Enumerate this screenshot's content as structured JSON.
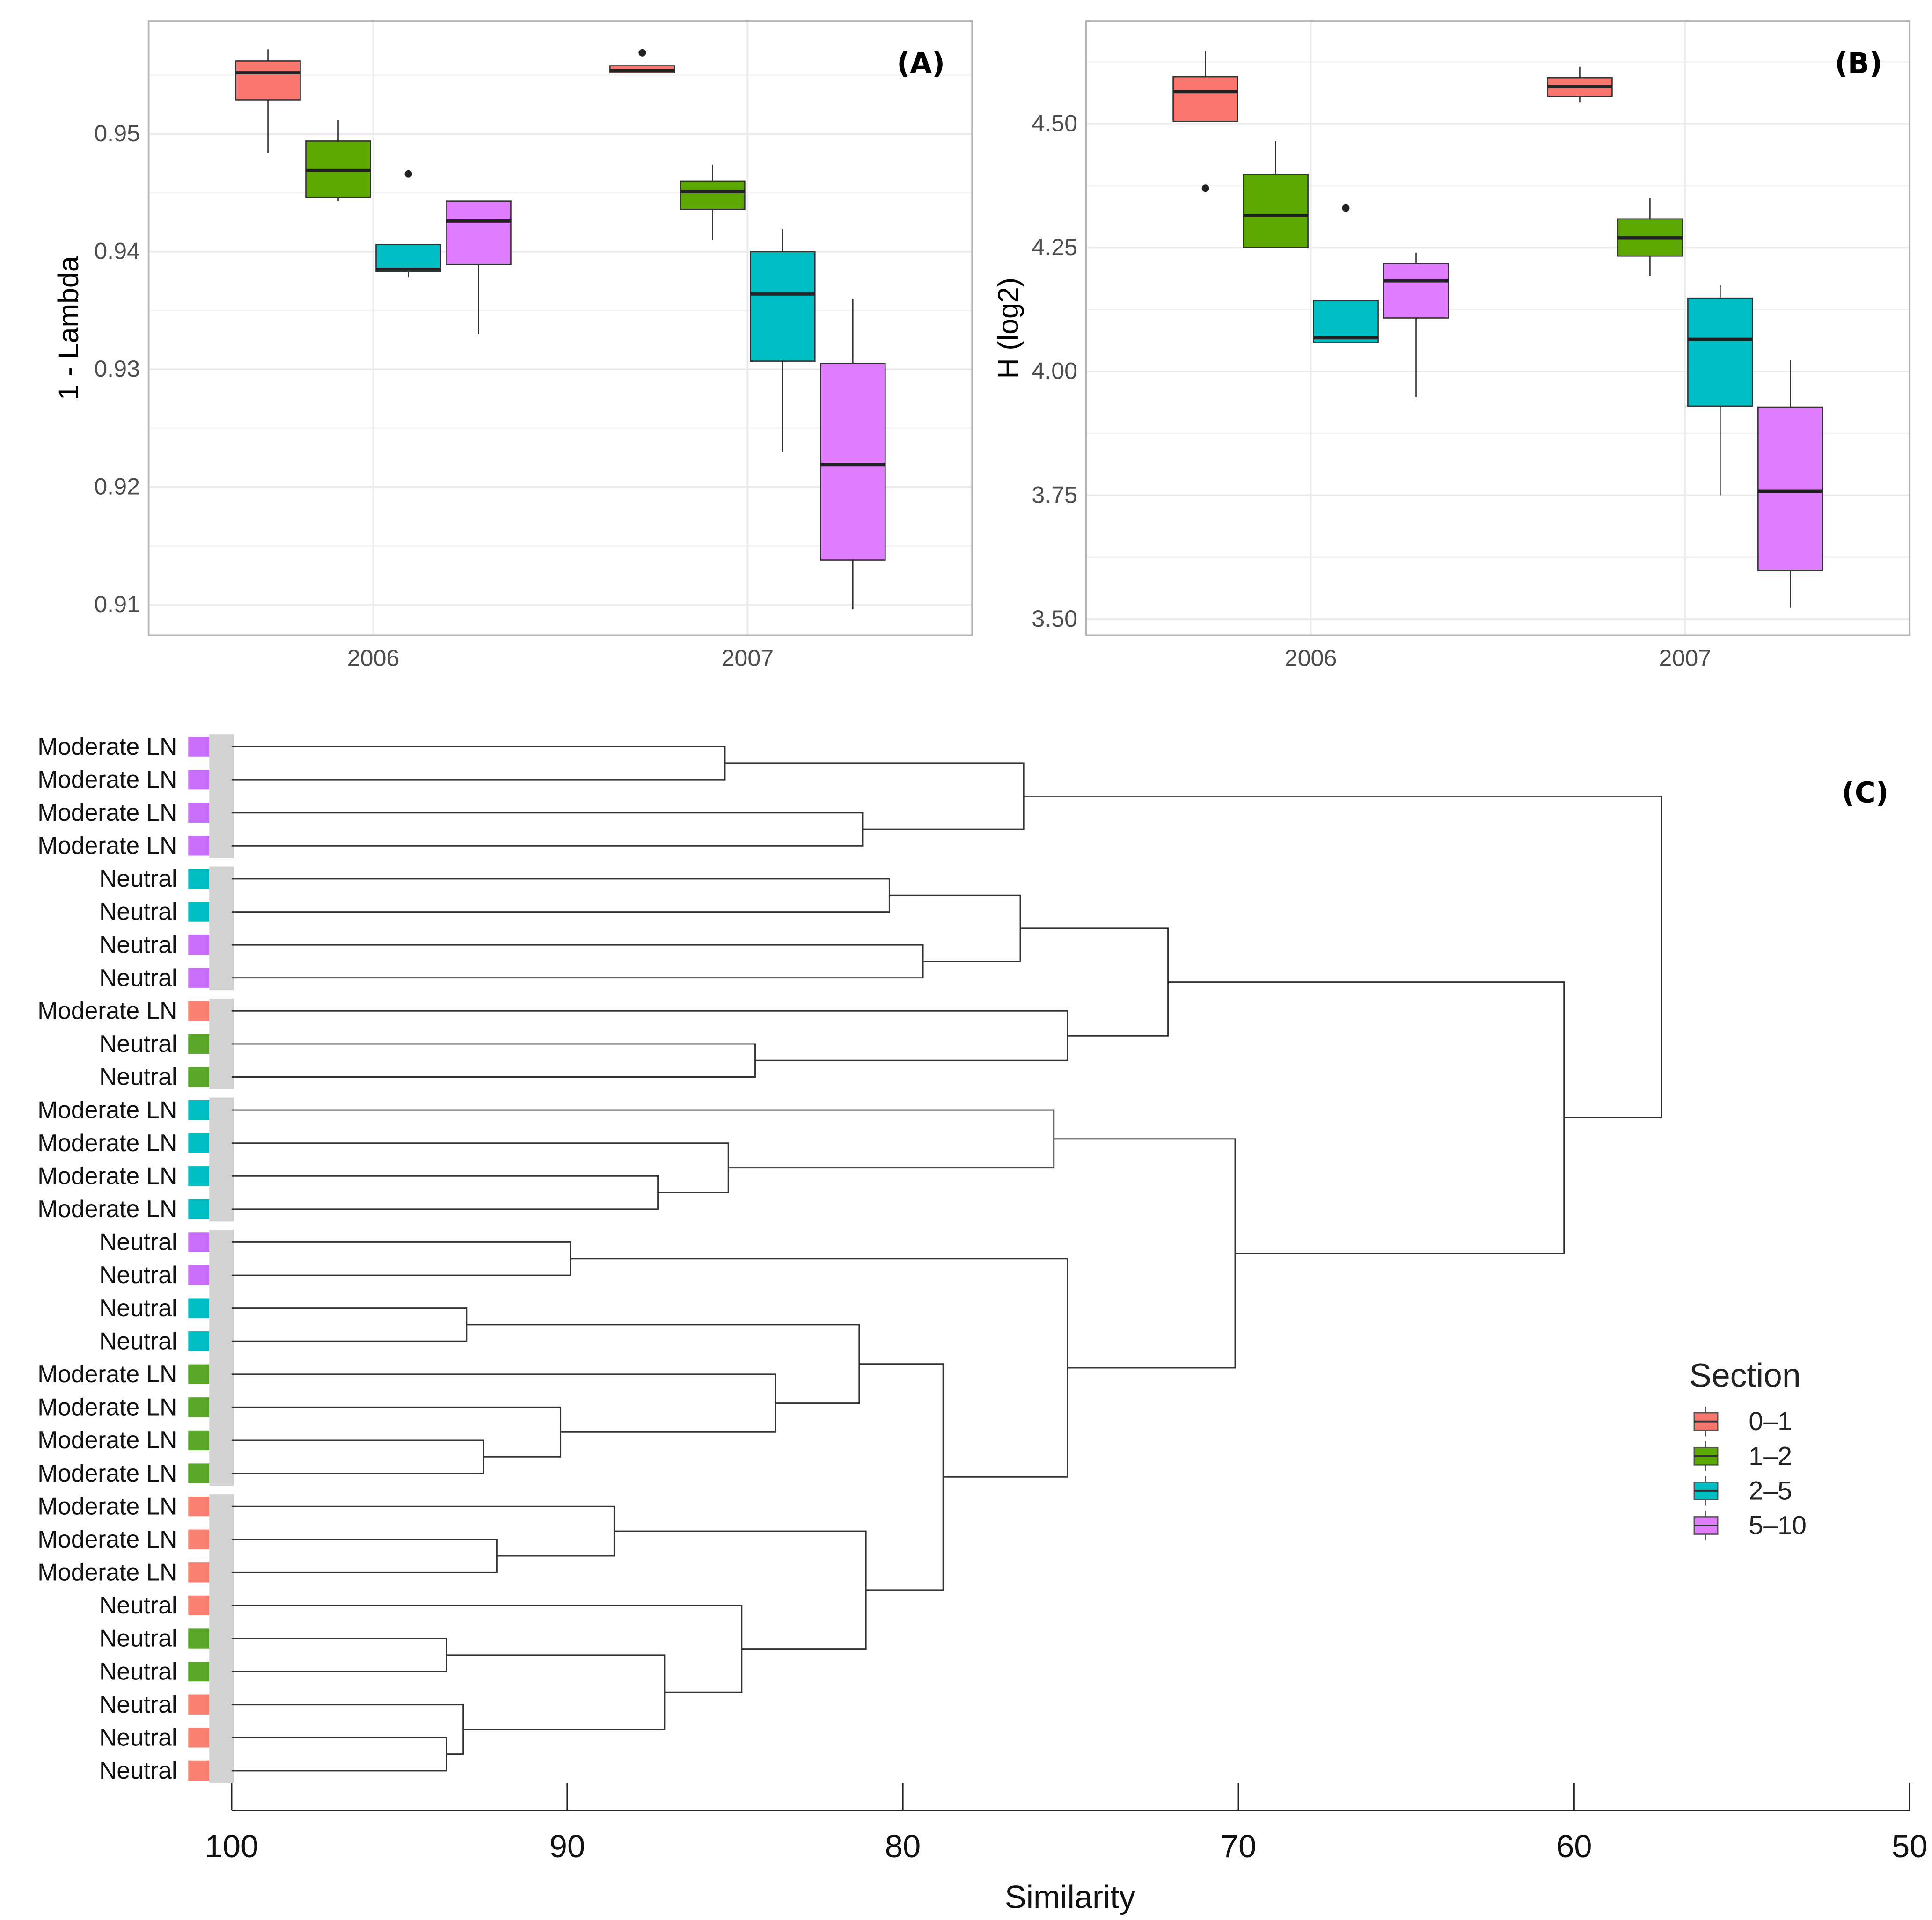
{
  "colors": {
    "0–1": "#F8766D",
    "1–2": "#5BA800",
    "2–5": "#00BFC4",
    "5–10": "#E07DFF"
  },
  "leaf_colors": {
    "0–1": "#FA8072",
    "1–2": "#5AA72A",
    "2–5": "#00BFC4",
    "5–10": "#C86EFA"
  },
  "chart_data": [
    {
      "type": "box",
      "panel_label": "(A)",
      "ylabel": "1 - Lambda",
      "xlabel": "",
      "categories": [
        "2006",
        "2007"
      ],
      "yticks": [
        "0.91",
        "0.92",
        "0.93",
        "0.94",
        "0.95"
      ],
      "ylim": [
        0.9074,
        0.9596
      ],
      "grid": true,
      "series": [
        {
          "name": "0–1",
          "boxes": [
            {
              "min": 0.9484,
              "q1": 0.9529,
              "median": 0.9552,
              "q3": 0.9562,
              "max": 0.9572,
              "outliers": []
            },
            {
              "min": 0.9552,
              "q1": 0.9552,
              "median": 0.9554,
              "q3": 0.9558,
              "max": 0.9558,
              "outliers": [
                0.9569
              ]
            }
          ]
        },
        {
          "name": "1–2",
          "boxes": [
            {
              "min": 0.9443,
              "q1": 0.9446,
              "median": 0.9469,
              "q3": 0.9494,
              "max": 0.9512,
              "outliers": []
            },
            {
              "min": 0.941,
              "q1": 0.9436,
              "median": 0.9451,
              "q3": 0.946,
              "max": 0.9474,
              "outliers": []
            }
          ]
        },
        {
          "name": "2–5",
          "boxes": [
            {
              "min": 0.9378,
              "q1": 0.9383,
              "median": 0.9385,
              "q3": 0.9406,
              "max": 0.9406,
              "outliers": [
                0.9466
              ]
            },
            {
              "min": 0.923,
              "q1": 0.9307,
              "median": 0.9364,
              "q3": 0.94,
              "max": 0.9419,
              "outliers": []
            }
          ]
        },
        {
          "name": "5–10",
          "boxes": [
            {
              "min": 0.933,
              "q1": 0.9389,
              "median": 0.9426,
              "q3": 0.9443,
              "max": 0.9443,
              "outliers": []
            },
            {
              "min": 0.9096,
              "q1": 0.9138,
              "median": 0.9219,
              "q3": 0.9305,
              "max": 0.936,
              "outliers": []
            }
          ]
        }
      ]
    },
    {
      "type": "box",
      "panel_label": "(B)",
      "ylabel": "H (log2)",
      "xlabel": "",
      "categories": [
        "2006",
        "2007"
      ],
      "yticks": [
        "3.50",
        "3.75",
        "4.00",
        "4.25",
        "4.50"
      ],
      "ylim": [
        3.4675,
        4.7075
      ],
      "grid": true,
      "series": [
        {
          "name": "0–1",
          "boxes": [
            {
              "min": 4.505,
              "q1": 4.505,
              "median": 4.565,
              "q3": 4.595,
              "max": 4.648,
              "outliers": [
                4.37
              ]
            },
            {
              "min": 4.543,
              "q1": 4.555,
              "median": 4.575,
              "q3": 4.593,
              "max": 4.615,
              "outliers": []
            }
          ]
        },
        {
          "name": "1–2",
          "boxes": [
            {
              "min": 4.25,
              "q1": 4.25,
              "median": 4.315,
              "q3": 4.398,
              "max": 4.465,
              "outliers": []
            },
            {
              "min": 4.193,
              "q1": 4.233,
              "median": 4.27,
              "q3": 4.308,
              "max": 4.35,
              "outliers": []
            }
          ]
        },
        {
          "name": "2–5",
          "boxes": [
            {
              "min": 4.058,
              "q1": 4.058,
              "median": 4.068,
              "q3": 4.143,
              "max": 4.143,
              "outliers": [
                4.33
              ]
            },
            {
              "min": 3.75,
              "q1": 3.93,
              "median": 4.065,
              "q3": 4.148,
              "max": 4.175,
              "outliers": []
            }
          ]
        },
        {
          "name": "5–10",
          "boxes": [
            {
              "min": 3.948,
              "q1": 4.108,
              "median": 4.183,
              "q3": 4.218,
              "max": 4.24,
              "outliers": []
            },
            {
              "min": 3.523,
              "q1": 3.598,
              "median": 3.758,
              "q3": 3.928,
              "max": 4.023,
              "outliers": []
            }
          ]
        }
      ]
    },
    {
      "type": "dendrogram",
      "panel_label": "(C)",
      "xlabel": "Similarity",
      "xticks": [
        "100",
        "90",
        "80",
        "70",
        "60",
        "50"
      ],
      "xlim": [
        100,
        50
      ],
      "legend": {
        "title": "Section",
        "position": "right",
        "items": [
          "0–1",
          "1–2",
          "2–5",
          "5–10"
        ]
      },
      "leaves": [
        {
          "label": "Moderate LN",
          "section": "5–10"
        },
        {
          "label": "Moderate LN",
          "section": "5–10"
        },
        {
          "label": "Moderate LN",
          "section": "5–10"
        },
        {
          "label": "Moderate LN",
          "section": "5–10"
        },
        {
          "label": "Neutral",
          "section": "2–5"
        },
        {
          "label": "Neutral",
          "section": "2–5"
        },
        {
          "label": "Neutral",
          "section": "5–10"
        },
        {
          "label": "Neutral",
          "section": "5–10"
        },
        {
          "label": "Moderate LN",
          "section": "0–1"
        },
        {
          "label": "Neutral",
          "section": "1–2"
        },
        {
          "label": "Neutral",
          "section": "1–2"
        },
        {
          "label": "Moderate LN",
          "section": "2–5"
        },
        {
          "label": "Moderate LN",
          "section": "2–5"
        },
        {
          "label": "Moderate LN",
          "section": "2–5"
        },
        {
          "label": "Moderate LN",
          "section": "2–5"
        },
        {
          "label": "Neutral",
          "section": "5–10"
        },
        {
          "label": "Neutral",
          "section": "5–10"
        },
        {
          "label": "Neutral",
          "section": "2–5"
        },
        {
          "label": "Neutral",
          "section": "2–5"
        },
        {
          "label": "Moderate LN",
          "section": "1–2"
        },
        {
          "label": "Moderate LN",
          "section": "1–2"
        },
        {
          "label": "Moderate LN",
          "section": "1–2"
        },
        {
          "label": "Moderate LN",
          "section": "1–2"
        },
        {
          "label": "Moderate LN",
          "section": "0–1"
        },
        {
          "label": "Moderate LN",
          "section": "0–1"
        },
        {
          "label": "Moderate LN",
          "section": "0–1"
        },
        {
          "label": "Neutral",
          "section": "0–1"
        },
        {
          "label": "Neutral",
          "section": "1–2"
        },
        {
          "label": "Neutral",
          "section": "1–2"
        },
        {
          "label": "Neutral",
          "section": "0–1"
        },
        {
          "label": "Neutral",
          "section": "0–1"
        },
        {
          "label": "Neutral",
          "section": "0–1"
        }
      ],
      "leaf_groups": [
        [
          0,
          3
        ],
        [
          4,
          7
        ],
        [
          8,
          10
        ],
        [
          11,
          14
        ],
        [
          15,
          22
        ],
        [
          23,
          31
        ]
      ],
      "merges": [
        {
          "id": "n1",
          "children": [
            0,
            1
          ],
          "similarity": 85.3
        },
        {
          "id": "n2",
          "children": [
            2,
            3
          ],
          "similarity": 81.2
        },
        {
          "id": "n3",
          "children": [
            "n1",
            "n2"
          ],
          "similarity": 76.4
        },
        {
          "id": "n4",
          "children": [
            4,
            5
          ],
          "similarity": 80.4
        },
        {
          "id": "n5",
          "children": [
            6,
            7
          ],
          "similarity": 79.4
        },
        {
          "id": "n6",
          "children": [
            "n4",
            "n5"
          ],
          "similarity": 76.5
        },
        {
          "id": "n7",
          "children": [
            9,
            10
          ],
          "similarity": 84.4
        },
        {
          "id": "n8",
          "children": [
            8,
            "n7"
          ],
          "similarity": 75.1
        },
        {
          "id": "n9",
          "children": [
            "n6",
            "n8"
          ],
          "similarity": 72.1
        },
        {
          "id": "n10",
          "children": [
            13,
            14
          ],
          "similarity": 87.3
        },
        {
          "id": "n11",
          "children": [
            12,
            "n10"
          ],
          "similarity": 85.2
        },
        {
          "id": "n12",
          "children": [
            11,
            "n11"
          ],
          "similarity": 75.5
        },
        {
          "id": "n13",
          "children": [
            15,
            16
          ],
          "similarity": 89.9
        },
        {
          "id": "n14",
          "children": [
            17,
            18
          ],
          "similarity": 93.0
        },
        {
          "id": "n15",
          "children": [
            21,
            22
          ],
          "similarity": 92.5
        },
        {
          "id": "n16",
          "children": [
            20,
            "n15"
          ],
          "similarity": 90.2
        },
        {
          "id": "n17",
          "children": [
            19,
            "n16"
          ],
          "similarity": 83.8
        },
        {
          "id": "n18",
          "children": [
            "n14",
            "n17"
          ],
          "similarity": 81.3
        },
        {
          "id": "n19",
          "children": [
            24,
            25
          ],
          "similarity": 92.1
        },
        {
          "id": "n20",
          "children": [
            23,
            "n19"
          ],
          "similarity": 88.6
        },
        {
          "id": "n21",
          "children": [
            27,
            28
          ],
          "similarity": 93.6
        },
        {
          "id": "n22",
          "children": [
            30,
            31
          ],
          "similarity": 93.6
        },
        {
          "id": "n23",
          "children": [
            29,
            "n22"
          ],
          "similarity": 93.1
        },
        {
          "id": "n24",
          "children": [
            "n21",
            "n23"
          ],
          "similarity": 87.1
        },
        {
          "id": "n25",
          "children": [
            26,
            "n24"
          ],
          "similarity": 84.8
        },
        {
          "id": "n26",
          "children": [
            "n20",
            "n25"
          ],
          "similarity": 81.1
        },
        {
          "id": "n27",
          "children": [
            "n18",
            "n26"
          ],
          "similarity": 78.8
        },
        {
          "id": "n28",
          "children": [
            "n13",
            "n27"
          ],
          "similarity": 75.1
        },
        {
          "id": "n29",
          "children": [
            "n12",
            "n28"
          ],
          "similarity": 70.1
        },
        {
          "id": "n30",
          "children": [
            "n9",
            "n29"
          ],
          "similarity": 60.3
        },
        {
          "id": "n31",
          "children": [
            "n3",
            "n30"
          ],
          "similarity": 57.4
        }
      ]
    }
  ]
}
